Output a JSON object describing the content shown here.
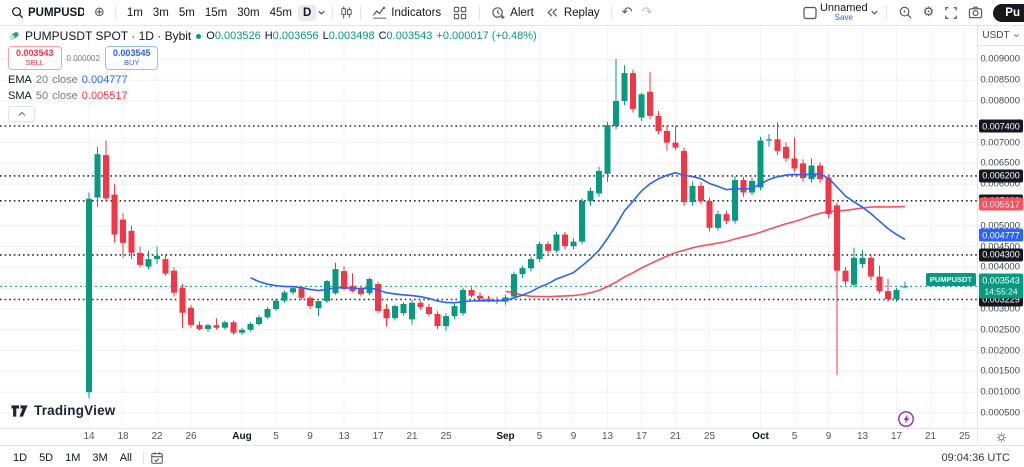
{
  "toolbar": {
    "symbol": "PUMPUSDT",
    "timeframes": [
      "1m",
      "3m",
      "5m",
      "15m",
      "30m",
      "45m"
    ],
    "active_timeframe": "D",
    "indicators_label": "Indicators",
    "alert_label": "Alert",
    "replay_label": "Replay",
    "layout_name": "Unnamed",
    "save_label": "Save",
    "publish_label": "Pu"
  },
  "legend": {
    "title": "PUMPUSDT SPOT · 1D · Bybit",
    "ohlc": {
      "o_label": "O",
      "o": "0.003526",
      "h_label": "H",
      "h": "0.003656",
      "l_label": "L",
      "l": "0.003498",
      "c_label": "C",
      "c": "0.003543",
      "change": "+0.000017 (+0.48%)"
    },
    "sell": {
      "price": "0.003543",
      "label": "SELL"
    },
    "spread": "0.000002",
    "buy": {
      "price": "0.003545",
      "label": "BUY"
    },
    "ema_row": {
      "name": "EMA",
      "length": "20",
      "source": "close",
      "value": "0.004777"
    },
    "sma_row": {
      "name": "SMA",
      "length": "50",
      "source": "close",
      "value": "0.005517"
    }
  },
  "price_axis": {
    "currency": "USDT",
    "labels": [
      {
        "text": "0.009000",
        "price": 0.009
      },
      {
        "text": "0.008500",
        "price": 0.0085
      },
      {
        "text": "0.008000",
        "price": 0.008
      },
      {
        "text": "0.007000",
        "price": 0.007
      },
      {
        "text": "0.006500",
        "price": 0.0065
      },
      {
        "text": "0.006000",
        "price": 0.006
      },
      {
        "text": "0.005000",
        "price": 0.005
      },
      {
        "text": "0.004500",
        "price": 0.0045
      },
      {
        "text": "0.004000",
        "price": 0.004
      },
      {
        "text": "0.003000",
        "price": 0.003
      },
      {
        "text": "0.002500",
        "price": 0.0025
      },
      {
        "text": "0.002000",
        "price": 0.002
      },
      {
        "text": "0.001500",
        "price": 0.0015
      },
      {
        "text": "0.001000",
        "price": 0.001
      },
      {
        "text": "0.000500",
        "price": 0.0005
      }
    ],
    "level_badges": [
      {
        "text": "0.007400",
        "price": 0.0074
      },
      {
        "text": "0.006200",
        "price": 0.0062
      },
      {
        "text": "0.005600",
        "price": 0.0056
      },
      {
        "text": "0.004300",
        "price": 0.0043
      },
      {
        "text": "0.003229",
        "price": 0.003229
      }
    ],
    "ema_badge": {
      "text": "0.004777",
      "price": 0.004777
    },
    "sma_badge": {
      "text": "0.005517",
      "price": 0.005517
    },
    "last_price_badge": {
      "text": "0.003543",
      "price": 0.003543,
      "countdown": "14:55:24"
    }
  },
  "time_axis": {
    "labels": [
      {
        "text": "14",
        "index": 0
      },
      {
        "text": "18",
        "index": 4
      },
      {
        "text": "22",
        "index": 8
      },
      {
        "text": "26",
        "index": 12
      },
      {
        "text": "Aug",
        "index": 18,
        "month": true
      },
      {
        "text": "5",
        "index": 22
      },
      {
        "text": "9",
        "index": 26
      },
      {
        "text": "13",
        "index": 30
      },
      {
        "text": "17",
        "index": 34
      },
      {
        "text": "21",
        "index": 38
      },
      {
        "text": "25",
        "index": 42
      },
      {
        "text": "Sep",
        "index": 49,
        "month": true
      },
      {
        "text": "5",
        "index": 53
      },
      {
        "text": "9",
        "index": 57
      },
      {
        "text": "13",
        "index": 61
      },
      {
        "text": "17",
        "index": 65
      },
      {
        "text": "21",
        "index": 69
      },
      {
        "text": "25",
        "index": 73
      },
      {
        "text": "Oct",
        "index": 79,
        "month": true
      },
      {
        "text": "5",
        "index": 83
      },
      {
        "text": "9",
        "index": 87
      },
      {
        "text": "13",
        "index": 91
      },
      {
        "text": "17",
        "index": 95
      },
      {
        "text": "21",
        "index": 99
      },
      {
        "text": "25",
        "index": 103
      }
    ]
  },
  "bottom_bar": {
    "ranges": [
      "1D",
      "5D",
      "1M",
      "3M",
      "All"
    ],
    "clock": "09:04:36 UTC"
  },
  "watermark": {
    "logo": "TradingView"
  },
  "icons": [
    "search-icon",
    "plus-circle-icon",
    "chart-style-icon",
    "indicators-icon",
    "layout-grid-icon",
    "alert-clock-icon",
    "replay-icon",
    "undo-icon",
    "redo-icon",
    "layout-panel-icon",
    "quick-search-icon",
    "settings-gear-icon",
    "fullscreen-icon",
    "camera-icon",
    "calendar-icon",
    "axis-gear-icon",
    "event-lightning-icon",
    "collapse-chevron-icon",
    "pump-logo-icon"
  ],
  "chart_data": {
    "type": "candlestick",
    "title": "PUMPUSDT SPOT · 1D · Bybit",
    "symbol": "PUMPUSDT",
    "exchange": "Bybit",
    "interval": "1D",
    "first_candle_date": "Jul 14",
    "last_candle_date": "Oct 18",
    "ylim": [
      0.00045,
      0.00955
    ],
    "grid": true,
    "colors": {
      "up": "#089981",
      "down": "#f23645",
      "ema": "#2962ff",
      "sma": "#f23645"
    },
    "last_price": 0.003543,
    "levels": [
      0.0074,
      0.0062,
      0.0056,
      0.0043,
      0.003229
    ],
    "indicators": [
      {
        "name": "EMA 20 close",
        "last_value": 0.004777,
        "color": "#2962ff"
      },
      {
        "name": "SMA 50 close",
        "last_value": 0.005517,
        "color": "#f23645"
      }
    ],
    "candles_ohlc": [
      [
        0.001,
        0.0058,
        0.00085,
        0.00565
      ],
      [
        0.00568,
        0.0069,
        0.00545,
        0.00672
      ],
      [
        0.0067,
        0.00705,
        0.0056,
        0.00566
      ],
      [
        0.00575,
        0.006,
        0.0046,
        0.00479
      ],
      [
        0.00515,
        0.0053,
        0.00423,
        0.00459
      ],
      [
        0.00488,
        0.005,
        0.0042,
        0.00435
      ],
      [
        0.00435,
        0.0045,
        0.004,
        0.00406
      ],
      [
        0.00402,
        0.0044,
        0.00395,
        0.0042
      ],
      [
        0.0042,
        0.0045,
        0.00408,
        0.00428
      ],
      [
        0.0042,
        0.0043,
        0.0038,
        0.00385
      ],
      [
        0.00392,
        0.004,
        0.0033,
        0.00339
      ],
      [
        0.00351,
        0.0036,
        0.00255,
        0.00291
      ],
      [
        0.00303,
        0.0031,
        0.00255,
        0.00262
      ],
      [
        0.00262,
        0.0027,
        0.00248,
        0.00252
      ],
      [
        0.00252,
        0.00265,
        0.00245,
        0.00261
      ],
      [
        0.00261,
        0.00278,
        0.0025,
        0.00255
      ],
      [
        0.00255,
        0.00272,
        0.0025,
        0.00268
      ],
      [
        0.00268,
        0.00272,
        0.00238,
        0.00243
      ],
      [
        0.00243,
        0.00255,
        0.00238,
        0.0025
      ],
      [
        0.0025,
        0.00268,
        0.00246,
        0.00264
      ],
      [
        0.00264,
        0.00285,
        0.0026,
        0.0028
      ],
      [
        0.0028,
        0.00305,
        0.00276,
        0.003
      ],
      [
        0.003,
        0.00325,
        0.00295,
        0.0032
      ],
      [
        0.0032,
        0.00345,
        0.00315,
        0.0034
      ],
      [
        0.0034,
        0.00355,
        0.00335,
        0.0035
      ],
      [
        0.0035,
        0.00355,
        0.00322,
        0.00327
      ],
      [
        0.00327,
        0.00332,
        0.003,
        0.00307
      ],
      [
        0.00302,
        0.00319,
        0.00283,
        0.00319
      ],
      [
        0.00319,
        0.0037,
        0.00314,
        0.00367
      ],
      [
        0.00338,
        0.00411,
        0.00334,
        0.00396
      ],
      [
        0.00391,
        0.00403,
        0.00344,
        0.00348
      ],
      [
        0.00355,
        0.00386,
        0.0034,
        0.00343
      ],
      [
        0.0035,
        0.00356,
        0.0033,
        0.00336
      ],
      [
        0.00338,
        0.00375,
        0.00333,
        0.00372
      ],
      [
        0.0036,
        0.00365,
        0.0029,
        0.00295
      ],
      [
        0.003,
        0.00312,
        0.00258,
        0.00278
      ],
      [
        0.00278,
        0.0031,
        0.00272,
        0.00307
      ],
      [
        0.0029,
        0.00316,
        0.00284,
        0.00312
      ],
      [
        0.00275,
        0.00322,
        0.00262,
        0.00315
      ],
      [
        0.00315,
        0.0032,
        0.00298,
        0.00305
      ],
      [
        0.00305,
        0.00312,
        0.00282,
        0.00288
      ],
      [
        0.00288,
        0.00295,
        0.00252,
        0.00259
      ],
      [
        0.00259,
        0.0029,
        0.00247,
        0.00283
      ],
      [
        0.00283,
        0.00312,
        0.00276,
        0.00307
      ],
      [
        0.0029,
        0.00352,
        0.00284,
        0.00346
      ],
      [
        0.00346,
        0.00352,
        0.00327,
        0.00332
      ],
      [
        0.00332,
        0.0034,
        0.0032,
        0.00325
      ],
      [
        0.00325,
        0.00332,
        0.00316,
        0.00322
      ],
      [
        0.00322,
        0.0033,
        0.00312,
        0.00318
      ],
      [
        0.00318,
        0.00334,
        0.0031,
        0.00328
      ],
      [
        0.0033,
        0.0039,
        0.00324,
        0.00384
      ],
      [
        0.00384,
        0.00404,
        0.00375,
        0.00398
      ],
      [
        0.00398,
        0.00426,
        0.0039,
        0.0042
      ],
      [
        0.0042,
        0.00462,
        0.00413,
        0.00456
      ],
      [
        0.00456,
        0.00463,
        0.00434,
        0.0044
      ],
      [
        0.0044,
        0.00486,
        0.00435,
        0.00479
      ],
      [
        0.00479,
        0.00485,
        0.00443,
        0.00451
      ],
      [
        0.00451,
        0.0047,
        0.00444,
        0.00462
      ],
      [
        0.00462,
        0.00566,
        0.00455,
        0.0056
      ],
      [
        0.0056,
        0.00592,
        0.00548,
        0.00584
      ],
      [
        0.00578,
        0.00642,
        0.0057,
        0.00632
      ],
      [
        0.00625,
        0.0075,
        0.00605,
        0.00742
      ],
      [
        0.0074,
        0.00901,
        0.00732,
        0.008
      ],
      [
        0.008,
        0.00886,
        0.0079,
        0.00867
      ],
      [
        0.00867,
        0.00875,
        0.00772,
        0.00781
      ],
      [
        0.0076,
        0.0082,
        0.00752,
        0.00816
      ],
      [
        0.00822,
        0.0087,
        0.00756,
        0.00764
      ],
      [
        0.00764,
        0.00776,
        0.0072,
        0.00728
      ],
      [
        0.00728,
        0.00742,
        0.0068,
        0.007
      ],
      [
        0.007,
        0.0074,
        0.00682,
        0.00688
      ],
      [
        0.0068,
        0.00688,
        0.00548,
        0.00557
      ],
      [
        0.00557,
        0.00606,
        0.00548,
        0.00596
      ],
      [
        0.00596,
        0.00605,
        0.00552,
        0.0056
      ],
      [
        0.0056,
        0.00568,
        0.00487,
        0.00495
      ],
      [
        0.00495,
        0.00536,
        0.00488,
        0.00528
      ],
      [
        0.00528,
        0.00536,
        0.00504,
        0.00512
      ],
      [
        0.00512,
        0.0062,
        0.00505,
        0.0061
      ],
      [
        0.0061,
        0.00618,
        0.0057,
        0.0058
      ],
      [
        0.0058,
        0.00616,
        0.00574,
        0.00608
      ],
      [
        0.00592,
        0.00714,
        0.00585,
        0.00705
      ],
      [
        0.00705,
        0.0072,
        0.0069,
        0.00708
      ],
      [
        0.00708,
        0.00749,
        0.0067,
        0.0068
      ],
      [
        0.0069,
        0.00701,
        0.00654,
        0.00662
      ],
      [
        0.00662,
        0.00712,
        0.0063,
        0.00638
      ],
      [
        0.0065,
        0.0066,
        0.00606,
        0.00615
      ],
      [
        0.00612,
        0.00662,
        0.00604,
        0.00645
      ],
      [
        0.00645,
        0.00653,
        0.00603,
        0.00612
      ],
      [
        0.00616,
        0.00624,
        0.00518,
        0.00528
      ],
      [
        0.00549,
        0.00556,
        0.00141,
        0.00392
      ],
      [
        0.00392,
        0.00401,
        0.00357,
        0.00366
      ],
      [
        0.00358,
        0.00447,
        0.00352,
        0.00423
      ],
      [
        0.00408,
        0.00442,
        0.00399,
        0.00423
      ],
      [
        0.00423,
        0.00431,
        0.00369,
        0.00378
      ],
      [
        0.00378,
        0.00404,
        0.00337,
        0.00343
      ],
      [
        0.00343,
        0.00373,
        0.00317,
        0.00324
      ],
      [
        0.00324,
        0.00351,
        0.00317,
        0.00346
      ],
      [
        0.003526,
        0.003656,
        0.003498,
        0.003543
      ]
    ]
  }
}
